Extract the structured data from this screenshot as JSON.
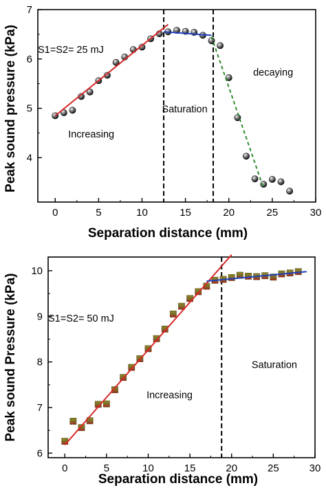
{
  "chart_data": [
    {
      "type": "scatter",
      "xlabel": "Separation distance (mm)",
      "ylabel": "Peak sound pressure (kPa)",
      "xlim": [
        -2,
        30
      ],
      "ylim": [
        3.1,
        7
      ],
      "xticks": [
        0,
        5,
        10,
        15,
        20,
        25,
        30
      ],
      "yticks": [
        4,
        5,
        6,
        7
      ],
      "grid": false,
      "marker": "sphere",
      "series": [
        {
          "x": [
            0,
            1,
            2,
            3,
            4,
            5,
            6,
            7,
            8,
            9,
            10,
            11,
            12,
            13,
            14,
            15,
            16,
            17,
            18,
            19,
            20,
            21,
            22,
            23,
            24,
            25,
            26,
            27
          ],
          "y": [
            4.85,
            4.91,
            4.96,
            5.24,
            5.33,
            5.56,
            5.67,
            5.93,
            6.04,
            6.19,
            6.24,
            6.41,
            6.51,
            6.55,
            6.58,
            6.56,
            6.54,
            6.48,
            6.37,
            6.27,
            5.62,
            4.81,
            4.03,
            3.57,
            3.46,
            3.56,
            3.51,
            3.32
          ]
        }
      ],
      "fits": [
        {
          "color": "#d62728",
          "style": "solid",
          "x": [
            0,
            13
          ],
          "y": [
            4.85,
            6.7
          ]
        },
        {
          "color": "#1f3fbf",
          "style": "solid",
          "x": [
            12.5,
            18
          ],
          "y": [
            6.55,
            6.48
          ]
        },
        {
          "color": "#2e8b2e",
          "style": "dashed",
          "x": [
            18,
            24
          ],
          "y": [
            6.45,
            3.38
          ]
        }
      ],
      "vlines": [
        12.5,
        18.2
      ],
      "annotations": [
        {
          "key": "label",
          "text": "S1=S2= 25 mJ",
          "x": -2,
          "y": 6.12
        },
        {
          "key": "increasing",
          "text": "Increasing",
          "x": 1.5,
          "y": 4.41
        },
        {
          "key": "saturation",
          "text": "Saturation",
          "x": 12.3,
          "y": 4.92
        },
        {
          "key": "decaying",
          "text": "decaying",
          "x": 22.8,
          "y": 5.66
        }
      ]
    },
    {
      "type": "scatter",
      "xlabel": "Separation distance (mm)",
      "ylabel": "Peak sound Pressure (kPa)",
      "xlim": [
        -2,
        30
      ],
      "ylim": [
        5.9,
        10.3
      ],
      "xticks": [
        0,
        5,
        10,
        15,
        20,
        25,
        30
      ],
      "yticks": [
        6,
        7,
        8,
        9,
        10
      ],
      "grid": false,
      "marker": "square",
      "series": [
        {
          "x": [
            0,
            1,
            2,
            3,
            4,
            5,
            6,
            7,
            8,
            9,
            10,
            11,
            12,
            13,
            14,
            15,
            16,
            17,
            18,
            19,
            20,
            21,
            22,
            23,
            24,
            25,
            26,
            27,
            28
          ],
          "y": [
            6.26,
            6.7,
            6.56,
            6.71,
            7.07,
            7.08,
            7.39,
            7.66,
            7.88,
            8.07,
            8.29,
            8.51,
            8.72,
            9.05,
            9.22,
            9.39,
            9.54,
            9.66,
            9.79,
            9.81,
            9.85,
            9.9,
            9.88,
            9.87,
            9.89,
            9.86,
            9.93,
            9.95,
            9.98
          ]
        }
      ],
      "fits": [
        {
          "color": "#d62728",
          "style": "solid",
          "x": [
            0,
            20
          ],
          "y": [
            6.18,
            10.35
          ]
        },
        {
          "color": "#1f3fbf",
          "style": "solid",
          "x": [
            17,
            29
          ],
          "y": [
            9.77,
            9.98
          ]
        }
      ],
      "vlines": [
        18.8
      ],
      "annotations": [
        {
          "key": "label",
          "text": "S1=S2= 50 mJ",
          "x": -2,
          "y": 8.88
        },
        {
          "key": "increasing",
          "text": "Increasing",
          "x": 9.8,
          "y": 7.2
        },
        {
          "key": "saturation",
          "text": "Saturation",
          "x": 22.4,
          "y": 7.87
        }
      ]
    }
  ]
}
